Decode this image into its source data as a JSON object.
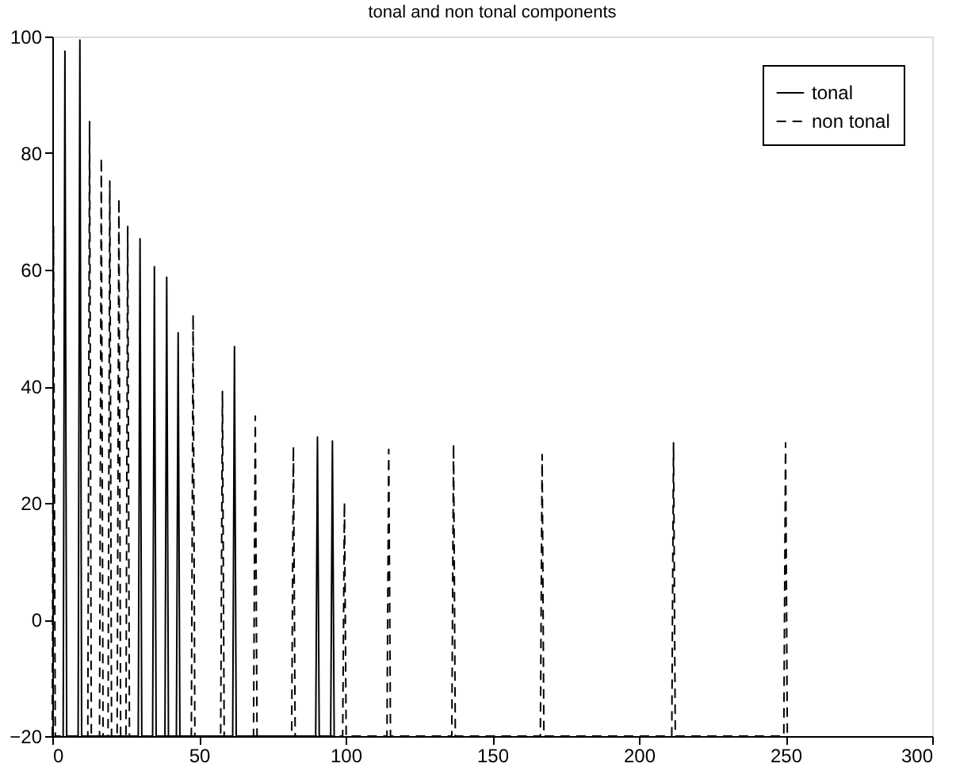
{
  "chart_data": {
    "type": "line",
    "title": "tonal and non tonal components",
    "xlim": [
      0,
      300
    ],
    "xticks": [
      0,
      50,
      100,
      150,
      200,
      250,
      300
    ],
    "ylim": [
      -20,
      100
    ],
    "yticks": [
      -20,
      0,
      20,
      40,
      60,
      80,
      100
    ],
    "grid": false,
    "legend": "top right",
    "marker": "none",
    "series": [
      {
        "name": "tonal",
        "color": "#000000",
        "line_style": "solid",
        "x": [
          3.7,
          4.3,
          4.9,
          8.8,
          9.4,
          10.0,
          29.3,
          29.9,
          30.5,
          34.2,
          34.8,
          35.4,
          38.4,
          39.0,
          39.6,
          42.3,
          42.9,
          43.5,
          61.5,
          62.1,
          62.7,
          89.8,
          90.4,
          91.0,
          94.9,
          95.5,
          96.1
        ],
        "values": [
          -20,
          97.5,
          -20,
          -20,
          99.4,
          -20,
          -20,
          65.3,
          -20,
          -20,
          60.5,
          -20,
          -20,
          58.7,
          -20,
          -20,
          49.2,
          -20,
          -20,
          46.8,
          -20,
          -20,
          31.3,
          -20,
          -20,
          30.6,
          -20
        ]
      },
      {
        "name": "non tonal",
        "color": "#000000",
        "line_style": "dashed",
        "x": [
          0.0,
          0.4,
          1.0,
          12.1,
          12.7,
          13.3,
          16.1,
          16.7,
          17.3,
          19.0,
          19.6,
          20.2,
          22.1,
          22.7,
          23.3,
          25.1,
          25.7,
          26.3,
          47.4,
          48.0,
          48.6,
          57.4,
          58.0,
          58.6,
          68.6,
          69.2,
          69.8,
          81.6,
          82.2,
          82.8,
          99.0,
          99.6,
          100.2,
          114.1,
          114.7,
          115.3,
          136.2,
          136.8,
          137.4,
          166.4,
          167.0,
          167.6,
          211.2,
          211.8,
          212.4,
          249.4,
          250.0,
          250.6
        ],
        "values": [
          -20,
          67.4,
          -20,
          -20,
          85.4,
          -20,
          -20,
          79.2,
          -20,
          -20,
          75.2,
          -20,
          -20,
          72.2,
          -20,
          -20,
          67.4,
          -20,
          -20,
          52.3,
          -20,
          -20,
          39.1,
          -20,
          -20,
          34.9,
          -20,
          -20,
          29.7,
          -20,
          -20,
          20.1,
          -20,
          -20,
          29.2,
          -20,
          -20,
          30.1,
          -20,
          -20,
          28.3,
          -20,
          -20,
          30.3,
          -20,
          -20,
          30.3,
          -20
        ]
      }
    ]
  }
}
